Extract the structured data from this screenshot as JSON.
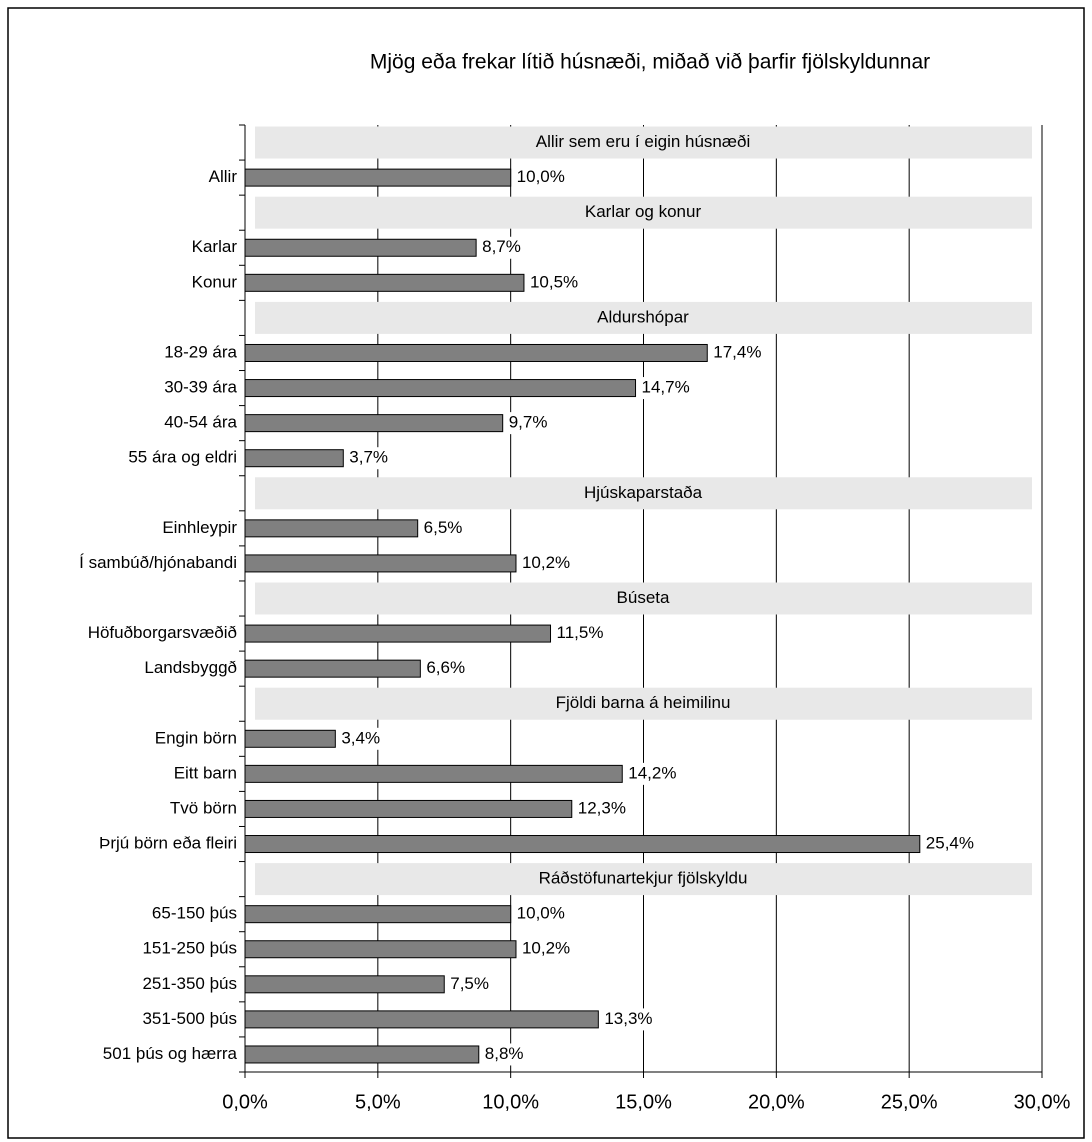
{
  "chart_data": {
    "type": "bar",
    "orientation": "horizontal",
    "title": "Mjög eða frekar lítið húsnæði, miðað við þarfir fjölskyldunnar",
    "color": "#808080",
    "grid": true,
    "xlim": [
      0,
      30
    ],
    "xticks": [
      {
        "value": 0,
        "label": "0,0%"
      },
      {
        "value": 5,
        "label": "5,0%"
      },
      {
        "value": 10,
        "label": "10,0%"
      },
      {
        "value": 15,
        "label": "15,0%"
      },
      {
        "value": 20,
        "label": "20,0%"
      },
      {
        "value": 25,
        "label": "25,0%"
      },
      {
        "value": 30,
        "label": "30,0%"
      }
    ],
    "groups": [
      {
        "name": "Allir sem eru í eigin húsnæði",
        "categories": [
          "Allir"
        ],
        "values": [
          10.0
        ],
        "value_labels": [
          "10,0%"
        ]
      },
      {
        "name": "Karlar og konur",
        "categories": [
          "Karlar",
          "Konur"
        ],
        "values": [
          8.7,
          10.5
        ],
        "value_labels": [
          "8,7%",
          "10,5%"
        ]
      },
      {
        "name": "Aldurshópar",
        "categories": [
          "18-29 ára",
          "30-39 ára",
          "40-54 ára",
          "55 ára og eldri"
        ],
        "values": [
          17.4,
          14.7,
          9.7,
          3.7
        ],
        "value_labels": [
          "17,4%",
          "14,7%",
          "9,7%",
          "3,7%"
        ]
      },
      {
        "name": "Hjúskaparstaða",
        "categories": [
          "Einhleypir",
          "Í sambúð/hjónabandi"
        ],
        "values": [
          6.5,
          10.2
        ],
        "value_labels": [
          "6,5%",
          "10,2%"
        ]
      },
      {
        "name": "Búseta",
        "categories": [
          "Höfuðborgarsvæðið",
          "Landsbyggð"
        ],
        "values": [
          11.5,
          6.6
        ],
        "value_labels": [
          "11,5%",
          "6,6%"
        ]
      },
      {
        "name": "Fjöldi barna á heimilinu",
        "categories": [
          "Engin börn",
          "Eitt barn",
          "Tvö börn",
          "Þrjú börn eða fleiri"
        ],
        "values": [
          3.4,
          14.2,
          12.3,
          25.4
        ],
        "value_labels": [
          "3,4%",
          "14,2%",
          "12,3%",
          "25,4%"
        ]
      },
      {
        "name": "Ráðstöfunartekjur fjölskyldu",
        "categories": [
          "65-150 þús",
          "151-250 þús",
          "251-350 þús",
          "351-500 þús",
          "501 þús og hærra"
        ],
        "values": [
          10.0,
          10.2,
          7.5,
          13.3,
          8.8
        ],
        "value_labels": [
          "10,0%",
          "10,2%",
          "7,5%",
          "13,3%",
          "8,8%"
        ]
      }
    ]
  }
}
